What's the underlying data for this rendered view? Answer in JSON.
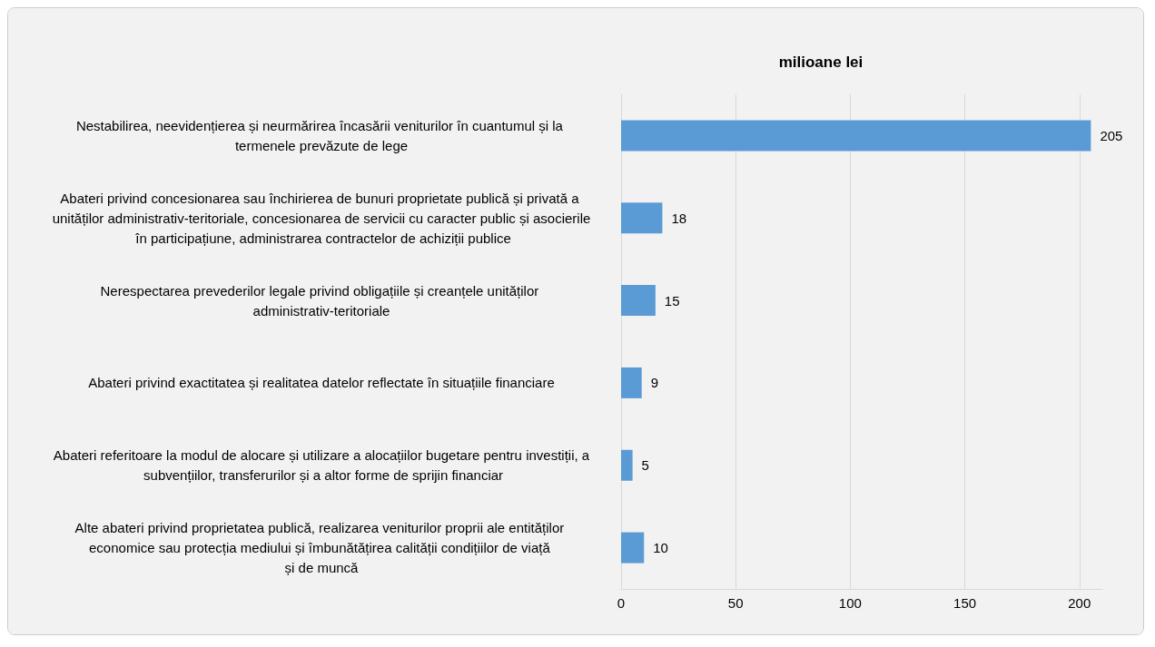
{
  "chart_data": {
    "type": "bar",
    "orientation": "horizontal",
    "title": "milioane lei",
    "categories": [
      "Nestabilirea, neevidențierea și neurmărirea încasării veniturilor în cuantumul și la termenele prevăzute de lege",
      "Abateri privind concesionarea sau închirierea de bunuri proprietate publică și privată a unităților administrativ-teritoriale, concesionarea de servicii cu caracter public și asocierile în participațiune, administrarea contractelor de achiziții publice",
      "Nerespectarea prevederilor legale privind obligațiile și creanțele unităților administrativ-teritoriale",
      "Abateri privind exactitatea și realitatea datelor reflectate în situațiile financiare",
      "Abateri referitoare la modul de alocare și utilizare a alocațiilor bugetare pentru investiții, a subvențiilor, transferurilor și a altor forme de sprijin financiar",
      "Alte abateri privind proprietatea publică, realizarea veniturilor proprii ale entităților economice sau protecția mediului și îmbunătățirea calității condițiilor de viață și de muncă"
    ],
    "values": [
      205,
      18,
      15,
      9,
      5,
      10
    ],
    "color": "#5b9bd5",
    "xlim": [
      0,
      210
    ],
    "xticks": [
      0,
      50,
      100,
      150,
      200
    ],
    "grid": "x",
    "data_labels": true
  }
}
